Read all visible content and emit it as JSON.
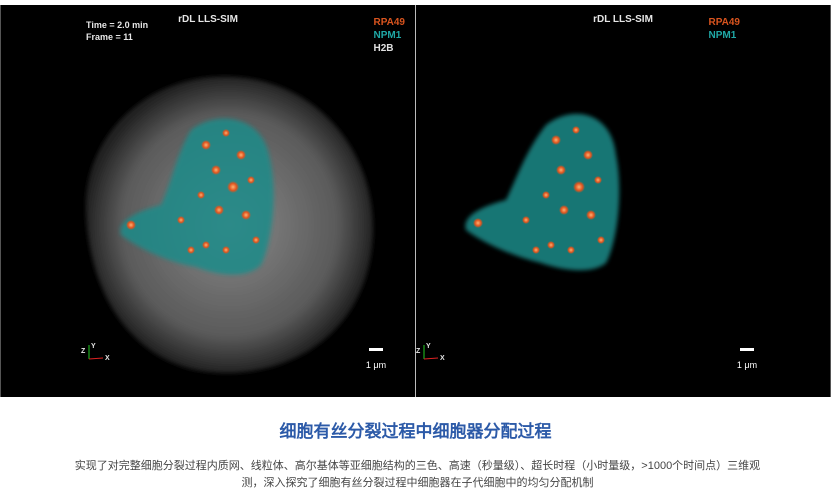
{
  "viewer": {
    "left": {
      "time": "Time = 2.0 min",
      "frame": "Frame = 11",
      "title": "rDL LLS-SIM",
      "legend": [
        "RPA49",
        "NPM1",
        "H2B"
      ],
      "scale": "1 μm",
      "axes": {
        "z": "Z",
        "y": "Y",
        "x": "X"
      }
    },
    "right": {
      "title": "rDL LLS-SIM",
      "legend": [
        "RPA49",
        "NPM1"
      ],
      "scale": "1 μm",
      "axes": {
        "z": "Z",
        "y": "Y",
        "x": "X"
      }
    }
  },
  "colors": {
    "RPA49": "#d9541e",
    "NPM1": "#1fa8a6",
    "H2B": "#e0e0e0",
    "heading": "#2c5aa8"
  },
  "caption": {
    "heading": "细胞有丝分裂过程中细胞器分配过程",
    "text": "实现了对完整细胞分裂过程内质网、线粒体、高尔基体等亚细胞结构的三色、高速（秒量级）、超长时程（小时量级，>1000个时间点）三维观测，深入探究了细胞有丝分裂过程中细胞器在子代细胞中的均匀分配机制"
  }
}
